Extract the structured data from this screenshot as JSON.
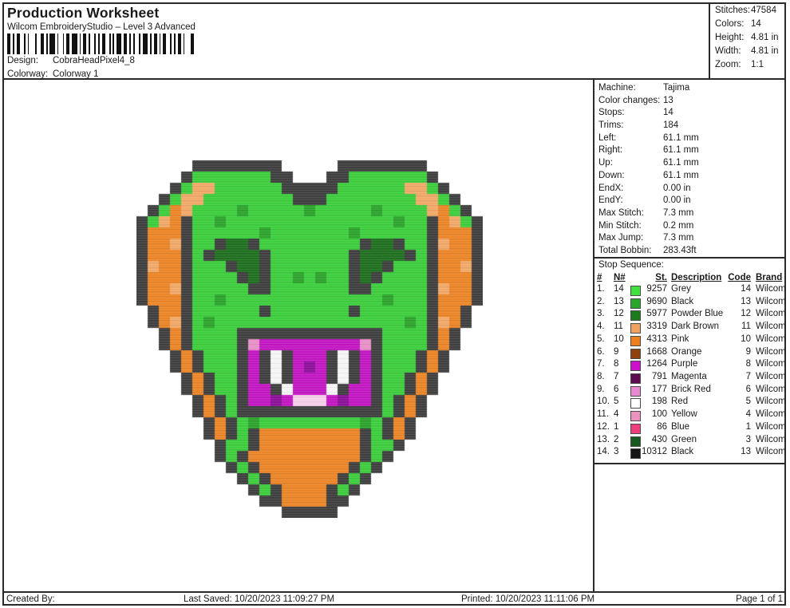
{
  "header": {
    "title": "Production Worksheet",
    "subtitle": "Wilcom EmbroideryStudio – Level 3 Advanced",
    "design_label": "Design:",
    "design_value": "CobraHeadPixel4_8",
    "colorway_label": "Colorway:",
    "colorway_value": "Colorway 1"
  },
  "stats": {
    "rows": [
      {
        "label": "Stitches:",
        "value": "47584"
      },
      {
        "label": "Colors:",
        "value": "14"
      },
      {
        "label": "Height:",
        "value": "4.81 in"
      },
      {
        "label": "Width:",
        "value": "4.81 in"
      },
      {
        "label": "Zoom:",
        "value": "1:1"
      }
    ]
  },
  "machine_info": {
    "rows": [
      {
        "label": "Machine:",
        "value": "Tajima"
      },
      {
        "label": "Color changes:",
        "value": "13"
      },
      {
        "label": "Stops:",
        "value": "14"
      },
      {
        "label": "Trims:",
        "value": "184"
      },
      {
        "label": "Left:",
        "value": "61.1 mm"
      },
      {
        "label": "Right:",
        "value": "61.1 mm"
      },
      {
        "label": "Up:",
        "value": "61.1 mm"
      },
      {
        "label": "Down:",
        "value": "61.1 mm"
      },
      {
        "label": "EndX:",
        "value": "0.00 in"
      },
      {
        "label": "EndY:",
        "value": "0.00 in"
      },
      {
        "label": "Max Stitch:",
        "value": "7.3 mm"
      },
      {
        "label": "Min Stitch:",
        "value": "0.2 mm"
      },
      {
        "label": "Max Jump:",
        "value": "7.3 mm"
      },
      {
        "label": "Total Bobbin:",
        "value": "283.43ft"
      }
    ]
  },
  "stop_sequence": {
    "title": "Stop Sequence:",
    "columns": [
      "#",
      "N#",
      "St.",
      "Description",
      "Code",
      "Brand"
    ],
    "rows": [
      {
        "num": "1.",
        "n": "14",
        "color": "#3fe03f",
        "st": "9257",
        "description": "Grey",
        "code": "14",
        "brand": "Wilcom"
      },
      {
        "num": "2.",
        "n": "13",
        "color": "#2aa62a",
        "st": "9690",
        "description": "Black",
        "code": "13",
        "brand": "Wilcom"
      },
      {
        "num": "3.",
        "n": "12",
        "color": "#1d7a1d",
        "st": "5977",
        "description": "Powder Blue",
        "code": "12",
        "brand": "Wilcom"
      },
      {
        "num": "4.",
        "n": "11",
        "color": "#f0a263",
        "st": "3319",
        "description": "Dark Brown",
        "code": "11",
        "brand": "Wilcom"
      },
      {
        "num": "5.",
        "n": "10",
        "color": "#ee7f1f",
        "st": "4313",
        "description": "Pink",
        "code": "10",
        "brand": "Wilcom"
      },
      {
        "num": "6.",
        "n": "9",
        "color": "#8f420e",
        "st": "1668",
        "description": "Orange",
        "code": "9",
        "brand": "Wilcom"
      },
      {
        "num": "7.",
        "n": "8",
        "color": "#cc10cc",
        "st": "1264",
        "description": "Purple",
        "code": "8",
        "brand": "Wilcom"
      },
      {
        "num": "8.",
        "n": "7",
        "color": "#5d0c52",
        "st": "791",
        "description": "Magenta",
        "code": "7",
        "brand": "Wilcom"
      },
      {
        "num": "9.",
        "n": "6",
        "color": "#e78ad2",
        "st": "177",
        "description": "Brick Red",
        "code": "6",
        "brand": "Wilcom"
      },
      {
        "num": "10.",
        "n": "5",
        "color": "#ffffff",
        "st": "198",
        "description": "Red",
        "code": "5",
        "brand": "Wilcom"
      },
      {
        "num": "11.",
        "n": "4",
        "color": "#ea93c1",
        "st": "100",
        "description": "Yellow",
        "code": "4",
        "brand": "Wilcom"
      },
      {
        "num": "12.",
        "n": "1",
        "color": "#ef3e7e",
        "st": "86",
        "description": "Blue",
        "code": "1",
        "brand": "Wilcom"
      },
      {
        "num": "13.",
        "n": "2",
        "color": "#17591f",
        "st": "430",
        "description": "Green",
        "code": "3",
        "brand": "Wilcom"
      },
      {
        "num": "14.",
        "n": "3",
        "color": "#151515",
        "st": "10312",
        "description": "Black",
        "code": "13",
        "brand": "Wilcom"
      }
    ]
  },
  "footer": {
    "created_by": "Created By:",
    "last_saved": "Last Saved: 10/20/2023 11:09:27 PM",
    "printed": "Printed: 10/20/2023 11:11:06 PM",
    "page": "Page 1 of 1"
  },
  "barcode": {
    "pattern": [
      2,
      1,
      1,
      1,
      2,
      2,
      1,
      1,
      1,
      3,
      1,
      2,
      2,
      1,
      1,
      1,
      3,
      1,
      1,
      2,
      1,
      1,
      2,
      1,
      3,
      1,
      1,
      1,
      2,
      1,
      1,
      2,
      1,
      1,
      1,
      1,
      2,
      2,
      1,
      1,
      1,
      1,
      3,
      1,
      2,
      1,
      1,
      1,
      1,
      2,
      1,
      1,
      3,
      1,
      1,
      1,
      2,
      1,
      1,
      1,
      2,
      2,
      1,
      1,
      1,
      1,
      2,
      1,
      1,
      3,
      2,
      1
    ]
  },
  "design_preview": {
    "cell_size": 14,
    "palette": {
      "K": "#3e3e3e",
      "G": "#3cce3c",
      "g": "#2ba32b",
      "d": "#1e6f1e",
      "O": "#ec8426",
      "o": "#f2a968",
      "M": "#c315c3",
      "m": "#8c0f9a",
      "P": "#e890c9",
      "p": "#f6cfe8",
      "W": "#f5f5f5"
    },
    "pixel_rows": [
      ".....KKKKKKKK.....KKKKKKKK.....",
      "....KGGGGGGGKK...KKGGGGGGGK....",
      "...KGooGGGGGGKKKKKGGGGGGooGK...",
      "..KGooGGGGGGGGKKKGGGGGGGGooGK..",
      ".KGOoGGGGgGGGGGgGGGGGgGGGGoOGK.",
      "KGoOKGGgGGGGGGGGGGGGGGGgGGKOoGK",
      "KOOOKGGGGGGgGGGGGGGgGGGGGGKOOOK",
      "KOOoKGGKddKGGGGGGGGGKddKGGKoOOK",
      "KOOOKGKddddKGGGGGGGKddddKGKOOOK",
      "KoOOKGGGKddKGGGGGGGKddKGGGKOOoK",
      "KOOOKGGGGKdKGGgGgGGKdKGGGGKOOOK",
      "KOOoKGGGGGKKGGGGGGGKKGGGGGKoOOK",
      "KOOOKGGgGGGGGGGGGGGGGGgGGGKOOOK",
      ".KOOKGGGGGGKGGGGGGGKGGGGGGKOOK.",
      ".KOoKGgGGGGGGGGGGGGGGGGGgGKoOK.",
      "..KOKGGGGKKKKKKKKKKKKKGGGGKOK..",
      "..KOKGGGGKPMMMMMMMMMPKGGGGKOK..",
      "...KOKGGGKMKWKMMMKWKMKGGGKOK...",
      "...KOKGGGKMKWKMmMKWKMKGGGKOK...",
      "....KOKGGKMKWKMMMKWKMKGGKOK....",
      "....KOKGGKMMKWMMMWKMMKGGKOK....",
      ".....KOKGKMMmMpppMmMMKGKOK.....",
      ".....KOKGKKKKKKKKKKKKKGKOK.....",
      "......KOKGgGGGGGGGGGgGKOK......",
      "......KOKGKOOOOOOOOOKGKOK......",
      ".......KGGKOOOOOOOOOKGGK.......",
      ".......KGKOOOOOOOOOOKGK........",
      "........KGKOOOOOOOOKGK.........",
      ".........KGKOOOOOOKGK..........",
      "..........KGKOOOOKGK...........",
      "...........KKOOOOKK............",
      ".............KKKKK............."
    ]
  }
}
